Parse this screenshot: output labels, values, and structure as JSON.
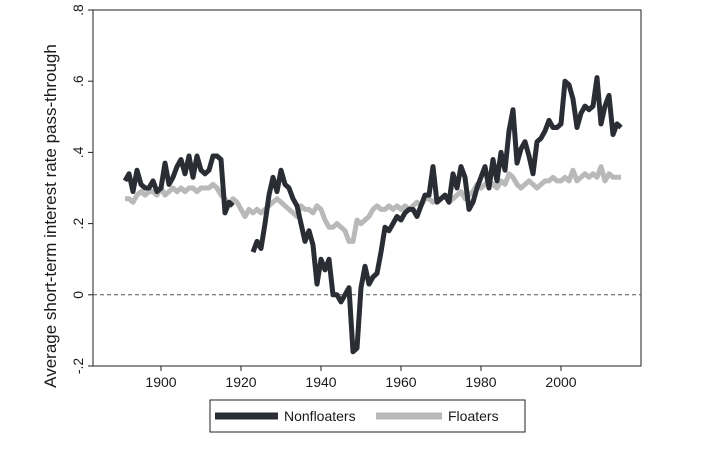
{
  "chart_data": {
    "type": "line",
    "title": "",
    "xlabel": "",
    "ylabel": "Average short-term interest rate pass-through",
    "xlim": [
      1883,
      2020
    ],
    "ylim": [
      -0.2,
      0.8
    ],
    "x_ticks": [
      1900,
      1920,
      1940,
      1960,
      1980,
      2000
    ],
    "x_tick_labels": [
      "1900",
      "1920",
      "1940",
      "1960",
      "1980",
      "2000"
    ],
    "y_ticks": [
      -0.2,
      0,
      0.2,
      0.4,
      0.6,
      0.8
    ],
    "y_tick_labels": [
      "-.2",
      "0",
      ".2",
      ".4",
      ".6",
      ".8"
    ],
    "reference_line": {
      "y": 0,
      "style": "dashed"
    },
    "grid": false,
    "legend_position": "bottom",
    "series": [
      {
        "name": "Nonfloaters",
        "color": "#2a2d34",
        "segments": [
          {
            "x": [
              1891,
              1892,
              1893,
              1894,
              1895,
              1896,
              1897,
              1898,
              1899,
              1900,
              1901,
              1902,
              1903,
              1904,
              1905,
              1906,
              1907,
              1908,
              1909,
              1910,
              1911,
              1912,
              1913,
              1914,
              1915,
              1916,
              1917,
              1918
            ],
            "y": [
              0.32,
              0.34,
              0.29,
              0.35,
              0.31,
              0.3,
              0.3,
              0.32,
              0.29,
              0.3,
              0.37,
              0.31,
              0.33,
              0.36,
              0.38,
              0.34,
              0.39,
              0.33,
              0.39,
              0.35,
              0.34,
              0.35,
              0.39,
              0.39,
              0.38,
              0.23,
              0.26,
              0.25
            ]
          },
          {
            "x": [
              1923,
              1924,
              1925,
              1926,
              1927,
              1928,
              1929,
              1930,
              1931,
              1932,
              1933,
              1934,
              1935,
              1936,
              1937,
              1938,
              1939,
              1940,
              1941,
              1942,
              1943,
              1944,
              1945,
              1946,
              1947,
              1948,
              1949,
              1950,
              1951,
              1952,
              1953,
              1954,
              1955,
              1956,
              1957,
              1958,
              1959,
              1960,
              1961,
              1962,
              1963,
              1964,
              1965,
              1966,
              1967,
              1968,
              1969,
              1970,
              1971,
              1972,
              1973,
              1974,
              1975,
              1976,
              1977,
              1978,
              1979,
              1980,
              1981,
              1982,
              1983,
              1984,
              1985,
              1986,
              1987,
              1988,
              1989,
              1990,
              1991,
              1992,
              1993,
              1994,
              1995,
              1996,
              1997,
              1998,
              1999,
              2000,
              2001,
              2002,
              2003,
              2004,
              2005,
              2006,
              2007,
              2008,
              2009,
              2010,
              2011,
              2012,
              2013,
              2014,
              2015
            ],
            "y": [
              0.12,
              0.15,
              0.13,
              0.2,
              0.28,
              0.33,
              0.29,
              0.35,
              0.31,
              0.3,
              0.27,
              0.25,
              0.2,
              0.15,
              0.18,
              0.14,
              0.03,
              0.1,
              0.07,
              0.1,
              0.0,
              0.0,
              -0.02,
              0.0,
              0.02,
              -0.16,
              -0.15,
              0.02,
              0.08,
              0.03,
              0.05,
              0.06,
              0.12,
              0.19,
              0.18,
              0.2,
              0.22,
              0.21,
              0.23,
              0.24,
              0.24,
              0.22,
              0.25,
              0.28,
              0.28,
              0.36,
              0.26,
              0.27,
              0.28,
              0.26,
              0.34,
              0.3,
              0.36,
              0.33,
              0.24,
              0.26,
              0.3,
              0.33,
              0.36,
              0.3,
              0.38,
              0.32,
              0.4,
              0.35,
              0.46,
              0.52,
              0.37,
              0.41,
              0.43,
              0.39,
              0.34,
              0.43,
              0.44,
              0.46,
              0.49,
              0.47,
              0.47,
              0.48,
              0.6,
              0.59,
              0.55,
              0.47,
              0.51,
              0.53,
              0.52,
              0.53,
              0.61,
              0.48,
              0.53,
              0.56,
              0.45,
              0.48,
              0.47
            ]
          }
        ]
      },
      {
        "name": "Floaters",
        "color": "#b9b9b9",
        "segments": [
          {
            "x": [
              1891,
              1892,
              1893,
              1894,
              1895,
              1896,
              1897,
              1898,
              1899,
              1900,
              1901,
              1902,
              1903,
              1904,
              1905,
              1906,
              1907,
              1908,
              1909,
              1910,
              1911,
              1912,
              1913,
              1914,
              1915,
              1916,
              1917,
              1918,
              1919,
              1920,
              1921,
              1922,
              1923,
              1924,
              1925,
              1926,
              1927,
              1928,
              1929,
              1930,
              1931,
              1932,
              1933,
              1934,
              1935,
              1936,
              1937,
              1938,
              1939,
              1940,
              1941,
              1942,
              1943,
              1944,
              1945,
              1946,
              1947,
              1948,
              1949,
              1950,
              1951,
              1952,
              1953,
              1954,
              1955,
              1956,
              1957,
              1958,
              1959,
              1960,
              1961,
              1962,
              1963,
              1964,
              1965,
              1966,
              1967,
              1968,
              1969,
              1970,
              1971,
              1972,
              1973,
              1974,
              1975,
              1976,
              1977,
              1978,
              1979,
              1980,
              1981,
              1982,
              1983,
              1984,
              1985,
              1986,
              1987,
              1988,
              1989,
              1990,
              1991,
              1992,
              1993,
              1994,
              1995,
              1996,
              1997,
              1998,
              1999,
              2000,
              2001,
              2002,
              2003,
              2004,
              2005,
              2006,
              2007,
              2008,
              2009,
              2010,
              2011,
              2012,
              2013,
              2014,
              2015
            ],
            "y": [
              0.27,
              0.27,
              0.26,
              0.28,
              0.29,
              0.28,
              0.29,
              0.29,
              0.28,
              0.3,
              0.28,
              0.29,
              0.3,
              0.29,
              0.3,
              0.29,
              0.3,
              0.3,
              0.29,
              0.3,
              0.3,
              0.3,
              0.31,
              0.3,
              0.28,
              0.27,
              0.25,
              0.27,
              0.26,
              0.24,
              0.22,
              0.24,
              0.23,
              0.24,
              0.23,
              0.24,
              0.25,
              0.26,
              0.27,
              0.26,
              0.25,
              0.24,
              0.23,
              0.22,
              0.25,
              0.24,
              0.24,
              0.23,
              0.25,
              0.24,
              0.21,
              0.19,
              0.19,
              0.2,
              0.19,
              0.18,
              0.15,
              0.15,
              0.21,
              0.2,
              0.21,
              0.22,
              0.24,
              0.25,
              0.24,
              0.24,
              0.25,
              0.24,
              0.25,
              0.24,
              0.25,
              0.24,
              0.25,
              0.26,
              0.25,
              0.27,
              0.27,
              0.26,
              0.27,
              0.27,
              0.28,
              0.26,
              0.27,
              0.28,
              0.29,
              0.27,
              0.28,
              0.29,
              0.31,
              0.3,
              0.31,
              0.32,
              0.31,
              0.3,
              0.32,
              0.31,
              0.34,
              0.33,
              0.31,
              0.3,
              0.31,
              0.32,
              0.31,
              0.3,
              0.31,
              0.32,
              0.32,
              0.33,
              0.32,
              0.32,
              0.33,
              0.32,
              0.35,
              0.32,
              0.33,
              0.34,
              0.33,
              0.34,
              0.33,
              0.36,
              0.32,
              0.34,
              0.33,
              0.33,
              0.33
            ]
          }
        ]
      }
    ]
  }
}
